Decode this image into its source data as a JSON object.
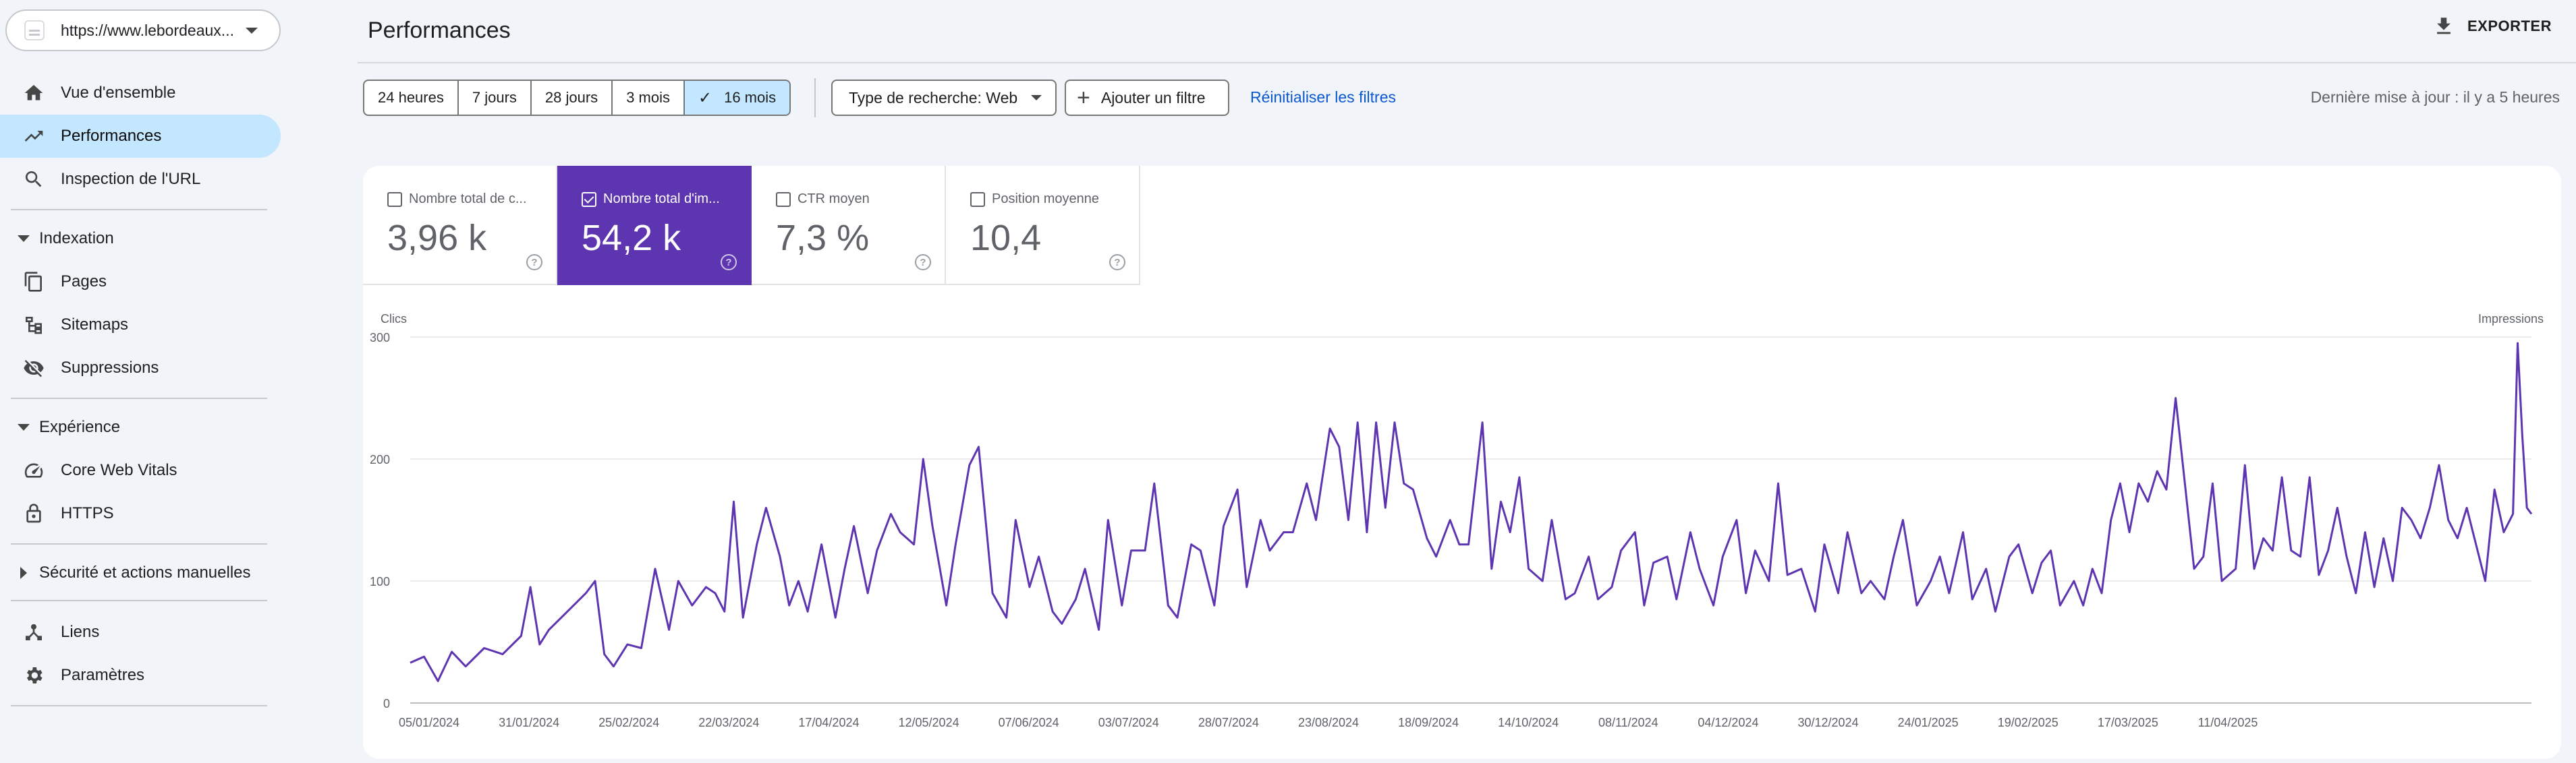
{
  "property": {
    "url": "https://www.lebordeaux...",
    "icon": "site-favicon"
  },
  "sidebar": {
    "items": [
      {
        "label": "Vue d'ensemble",
        "icon": "home-icon"
      },
      {
        "label": "Performances",
        "icon": "trending-up-icon",
        "active": true
      },
      {
        "label": "Inspection de l'URL",
        "icon": "search-icon"
      }
    ],
    "sections": [
      {
        "label": "Indexation",
        "expanded": true,
        "items": [
          {
            "label": "Pages",
            "icon": "pages-icon"
          },
          {
            "label": "Sitemaps",
            "icon": "sitemap-icon"
          },
          {
            "label": "Suppressions",
            "icon": "visibility-off-icon"
          }
        ]
      },
      {
        "label": "Expérience",
        "expanded": true,
        "items": [
          {
            "label": "Core Web Vitals",
            "icon": "speed-icon"
          },
          {
            "label": "HTTPS",
            "icon": "lock-icon"
          }
        ]
      },
      {
        "label": "Sécurité et actions manuelles",
        "expanded": false,
        "items": []
      }
    ],
    "bottom": [
      {
        "label": "Liens",
        "icon": "links-icon"
      },
      {
        "label": "Paramètres",
        "icon": "gear-icon"
      }
    ]
  },
  "header": {
    "title": "Performances",
    "export_label": "EXPORTER"
  },
  "filters": {
    "ranges": [
      "24 heures",
      "7 jours",
      "28 jours",
      "3 mois",
      "16 mois"
    ],
    "selected_range": "16 mois",
    "search_type": "Type de recherche: Web",
    "add_filter": "Ajouter un filtre",
    "reset": "Réinitialiser les filtres",
    "updated": "Dernière mise à jour : il y a 5 heures"
  },
  "metrics": [
    {
      "label": "Nombre total de c...",
      "value": "3,96 k",
      "selected": false
    },
    {
      "label": "Nombre total d'im...",
      "value": "54,2 k",
      "selected": true
    },
    {
      "label": "CTR moyen",
      "value": "7,3 %",
      "selected": false
    },
    {
      "label": "Position moyenne",
      "value": "10,4",
      "selected": false
    }
  ],
  "chart_data": {
    "type": "line",
    "left_axis_label": "Clics",
    "right_axis_label": "Impressions",
    "y_ticks": [
      0,
      100,
      200,
      300
    ],
    "ylim": [
      0,
      300
    ],
    "x_tick_labels": [
      "05/01/2024",
      "31/01/2024",
      "25/02/2024",
      "22/03/2024",
      "17/04/2024",
      "12/05/2024",
      "07/06/2024",
      "03/07/2024",
      "28/07/2024",
      "23/08/2024",
      "18/09/2024",
      "14/10/2024",
      "08/11/2024",
      "04/12/2024",
      "30/12/2024",
      "24/01/2025",
      "19/02/2025",
      "17/03/2025",
      "11/04/2025"
    ],
    "series": [
      {
        "name": "Impressions",
        "color": "#5e35b1",
        "keypoints": [
          [
            0,
            33
          ],
          [
            3,
            38
          ],
          [
            6,
            18
          ],
          [
            9,
            42
          ],
          [
            12,
            30
          ],
          [
            16,
            45
          ],
          [
            20,
            40
          ],
          [
            24,
            55
          ],
          [
            26,
            95
          ],
          [
            28,
            48
          ],
          [
            30,
            60
          ],
          [
            34,
            75
          ],
          [
            38,
            90
          ],
          [
            40,
            100
          ],
          [
            42,
            40
          ],
          [
            44,
            30
          ],
          [
            47,
            48
          ],
          [
            50,
            45
          ],
          [
            53,
            110
          ],
          [
            56,
            60
          ],
          [
            58,
            100
          ],
          [
            61,
            80
          ],
          [
            64,
            95
          ],
          [
            66,
            90
          ],
          [
            68,
            75
          ],
          [
            70,
            165
          ],
          [
            72,
            70
          ],
          [
            75,
            130
          ],
          [
            77,
            160
          ],
          [
            80,
            120
          ],
          [
            82,
            80
          ],
          [
            84,
            100
          ],
          [
            86,
            75
          ],
          [
            89,
            130
          ],
          [
            92,
            70
          ],
          [
            94,
            110
          ],
          [
            96,
            145
          ],
          [
            99,
            90
          ],
          [
            101,
            125
          ],
          [
            104,
            155
          ],
          [
            106,
            140
          ],
          [
            109,
            130
          ],
          [
            111,
            200
          ],
          [
            113,
            145
          ],
          [
            116,
            80
          ],
          [
            118,
            130
          ],
          [
            121,
            195
          ],
          [
            123,
            210
          ],
          [
            126,
            90
          ],
          [
            129,
            70
          ],
          [
            131,
            150
          ],
          [
            134,
            95
          ],
          [
            136,
            120
          ],
          [
            139,
            75
          ],
          [
            141,
            65
          ],
          [
            144,
            85
          ],
          [
            146,
            110
          ],
          [
            149,
            60
          ],
          [
            151,
            150
          ],
          [
            154,
            80
          ],
          [
            156,
            125
          ],
          [
            159,
            125
          ],
          [
            161,
            180
          ],
          [
            164,
            80
          ],
          [
            166,
            70
          ],
          [
            169,
            130
          ],
          [
            171,
            125
          ],
          [
            174,
            80
          ],
          [
            176,
            145
          ],
          [
            179,
            175
          ],
          [
            181,
            95
          ],
          [
            184,
            150
          ],
          [
            186,
            125
          ],
          [
            189,
            140
          ],
          [
            191,
            140
          ],
          [
            194,
            180
          ],
          [
            196,
            150
          ],
          [
            199,
            225
          ],
          [
            201,
            210
          ],
          [
            203,
            150
          ],
          [
            205,
            230
          ],
          [
            207,
            140
          ],
          [
            209,
            230
          ],
          [
            211,
            160
          ],
          [
            213,
            230
          ],
          [
            215,
            180
          ],
          [
            217,
            175
          ],
          [
            220,
            135
          ],
          [
            222,
            120
          ],
          [
            225,
            150
          ],
          [
            227,
            130
          ],
          [
            229,
            130
          ],
          [
            232,
            230
          ],
          [
            234,
            110
          ],
          [
            236,
            165
          ],
          [
            238,
            140
          ],
          [
            240,
            185
          ],
          [
            242,
            110
          ],
          [
            245,
            100
          ],
          [
            247,
            150
          ],
          [
            250,
            85
          ],
          [
            252,
            90
          ],
          [
            255,
            120
          ],
          [
            257,
            85
          ],
          [
            260,
            95
          ],
          [
            262,
            125
          ],
          [
            265,
            140
          ],
          [
            267,
            80
          ],
          [
            269,
            115
          ],
          [
            272,
            120
          ],
          [
            274,
            85
          ],
          [
            277,
            140
          ],
          [
            279,
            110
          ],
          [
            282,
            80
          ],
          [
            284,
            120
          ],
          [
            287,
            150
          ],
          [
            289,
            90
          ],
          [
            291,
            125
          ],
          [
            294,
            100
          ],
          [
            296,
            180
          ],
          [
            298,
            105
          ],
          [
            301,
            110
          ],
          [
            304,
            75
          ],
          [
            306,
            130
          ],
          [
            309,
            90
          ],
          [
            311,
            140
          ],
          [
            314,
            90
          ],
          [
            316,
            100
          ],
          [
            319,
            85
          ],
          [
            321,
            120
          ],
          [
            323,
            150
          ],
          [
            326,
            80
          ],
          [
            329,
            100
          ],
          [
            331,
            120
          ],
          [
            333,
            90
          ],
          [
            336,
            140
          ],
          [
            338,
            85
          ],
          [
            341,
            110
          ],
          [
            343,
            75
          ],
          [
            346,
            120
          ],
          [
            348,
            130
          ],
          [
            351,
            90
          ],
          [
            353,
            115
          ],
          [
            355,
            125
          ],
          [
            357,
            80
          ],
          [
            360,
            100
          ],
          [
            362,
            80
          ],
          [
            364,
            110
          ],
          [
            366,
            90
          ],
          [
            368,
            150
          ],
          [
            370,
            180
          ],
          [
            372,
            140
          ],
          [
            374,
            180
          ],
          [
            376,
            165
          ],
          [
            378,
            190
          ],
          [
            380,
            175
          ],
          [
            382,
            250
          ],
          [
            384,
            180
          ],
          [
            386,
            110
          ],
          [
            388,
            120
          ],
          [
            390,
            180
          ],
          [
            392,
            100
          ],
          [
            395,
            110
          ],
          [
            397,
            195
          ],
          [
            399,
            110
          ],
          [
            401,
            135
          ],
          [
            403,
            125
          ],
          [
            405,
            185
          ],
          [
            407,
            125
          ],
          [
            409,
            120
          ],
          [
            411,
            185
          ],
          [
            413,
            105
          ],
          [
            415,
            125
          ],
          [
            417,
            160
          ],
          [
            419,
            120
          ],
          [
            421,
            90
          ],
          [
            423,
            140
          ],
          [
            425,
            95
          ],
          [
            427,
            135
          ],
          [
            429,
            100
          ],
          [
            431,
            160
          ],
          [
            433,
            150
          ],
          [
            435,
            135
          ],
          [
            437,
            160
          ],
          [
            439,
            195
          ],
          [
            441,
            150
          ],
          [
            443,
            135
          ],
          [
            445,
            160
          ],
          [
            447,
            130
          ],
          [
            449,
            100
          ],
          [
            451,
            175
          ],
          [
            453,
            140
          ],
          [
            455,
            155
          ],
          [
            456,
            295
          ],
          [
            457,
            220
          ],
          [
            458,
            160
          ],
          [
            459,
            155
          ]
        ]
      }
    ],
    "x_index_max": 459
  }
}
